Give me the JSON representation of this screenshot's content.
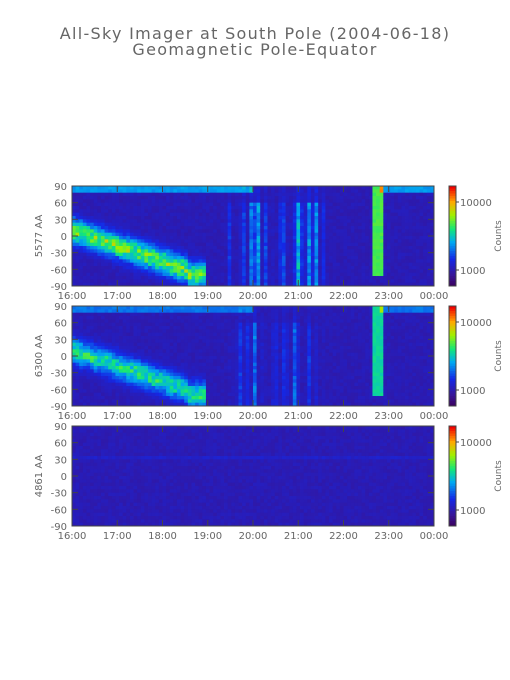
{
  "title_line_1": "All-Sky Imager at South Pole (2004-06-18)",
  "title_line_2": "Geomagnetic Pole-Equator",
  "chart_data": [
    {
      "type": "heatmap",
      "ylabel": "5577 AA",
      "colorbar_label": "Counts",
      "colorbar_ticks": [
        "10000",
        "1000"
      ],
      "x_ticks": [
        "16:00",
        "17:00",
        "18:00",
        "19:00",
        "20:00",
        "21:00",
        "22:00",
        "23:00",
        "00:00"
      ],
      "y_ticks": [
        "90",
        "60",
        "30",
        "0",
        "-30",
        "-60",
        "-90"
      ],
      "xlim_hours": [
        16,
        24
      ],
      "ylim": [
        -90,
        90
      ],
      "scale": "log",
      "colormap": "rainbow (purple-blue-green-yellow-red)",
      "activity": 1.0
    },
    {
      "type": "heatmap",
      "ylabel": "6300 AA",
      "colorbar_label": "Counts",
      "colorbar_ticks": [
        "10000",
        "1000"
      ],
      "x_ticks": [
        "16:00",
        "17:00",
        "18:00",
        "19:00",
        "20:00",
        "21:00",
        "22:00",
        "23:00",
        "00:00"
      ],
      "y_ticks": [
        "90",
        "60",
        "30",
        "0",
        "-30",
        "-60",
        "-90"
      ],
      "xlim_hours": [
        16,
        24
      ],
      "ylim": [
        -90,
        90
      ],
      "scale": "log",
      "colormap": "rainbow (purple-blue-green-yellow-red)",
      "activity": 0.8
    },
    {
      "type": "heatmap",
      "ylabel": "4861 AA",
      "colorbar_label": "Counts",
      "colorbar_ticks": [
        "10000",
        "1000"
      ],
      "x_ticks": [
        "16:00",
        "17:00",
        "18:00",
        "19:00",
        "20:00",
        "21:00",
        "22:00",
        "23:00",
        "00:00"
      ],
      "y_ticks": [
        "90",
        "60",
        "30",
        "0",
        "-30",
        "-60",
        "-90"
      ],
      "xlim_hours": [
        16,
        24
      ],
      "ylim": [
        -90,
        90
      ],
      "scale": "log",
      "colormap": "rainbow (purple-blue-green-yellow-red)",
      "activity": 0.0
    }
  ]
}
